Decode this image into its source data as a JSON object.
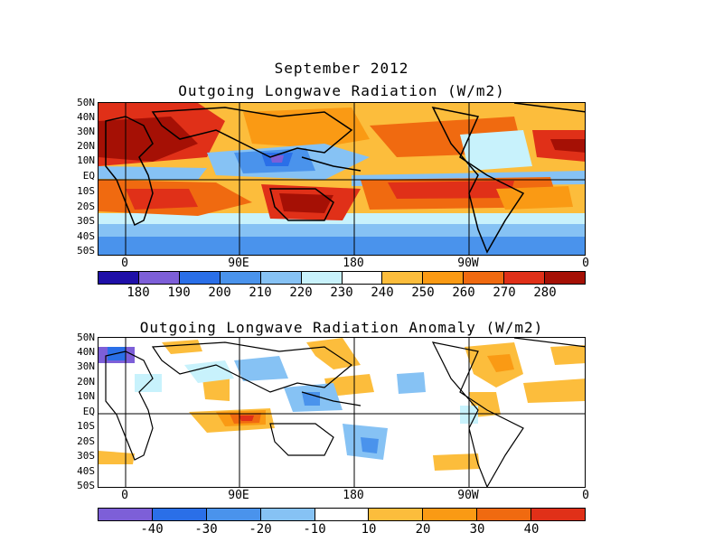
{
  "top_panel": {
    "title_line1": "September 2012",
    "title_line2": "Outgoing Longwave Radiation (W/m2)",
    "lat_labels": [
      "50N",
      "40N",
      "30N",
      "20N",
      "10N",
      "EQ",
      "10S",
      "20S",
      "30S",
      "40S",
      "50S"
    ],
    "lon_labels": [
      "0",
      "90E",
      "180",
      "90W",
      "0"
    ],
    "colorbar": {
      "colors": [
        "#1f0fa8",
        "#7d5fd8",
        "#2a6fe8",
        "#4a93ec",
        "#86c2f4",
        "#c8f2fc",
        "#ffffff",
        "#fcbd3c",
        "#fa9a14",
        "#f06a10",
        "#e03018",
        "#a51005"
      ],
      "labels": [
        "180",
        "190",
        "200",
        "210",
        "220",
        "230",
        "240",
        "250",
        "260",
        "270",
        "280"
      ]
    }
  },
  "bottom_panel": {
    "title": "Outgoing Longwave Radiation Anomaly (W/m2)",
    "lat_labels": [
      "50N",
      "40N",
      "30N",
      "20N",
      "10N",
      "EQ",
      "10S",
      "20S",
      "30S",
      "40S",
      "50S"
    ],
    "lon_labels": [
      "0",
      "90E",
      "180",
      "90W",
      "0"
    ],
    "colorbar": {
      "colors": [
        "#7d5fd8",
        "#2a6fe8",
        "#4a93ec",
        "#86c2f4",
        "#ffffff",
        "#fcbd3c",
        "#fa9a14",
        "#f06a10",
        "#e03018"
      ],
      "labels": [
        "-40",
        "-30",
        "-20",
        "-10",
        "10",
        "20",
        "30",
        "40"
      ]
    }
  }
}
